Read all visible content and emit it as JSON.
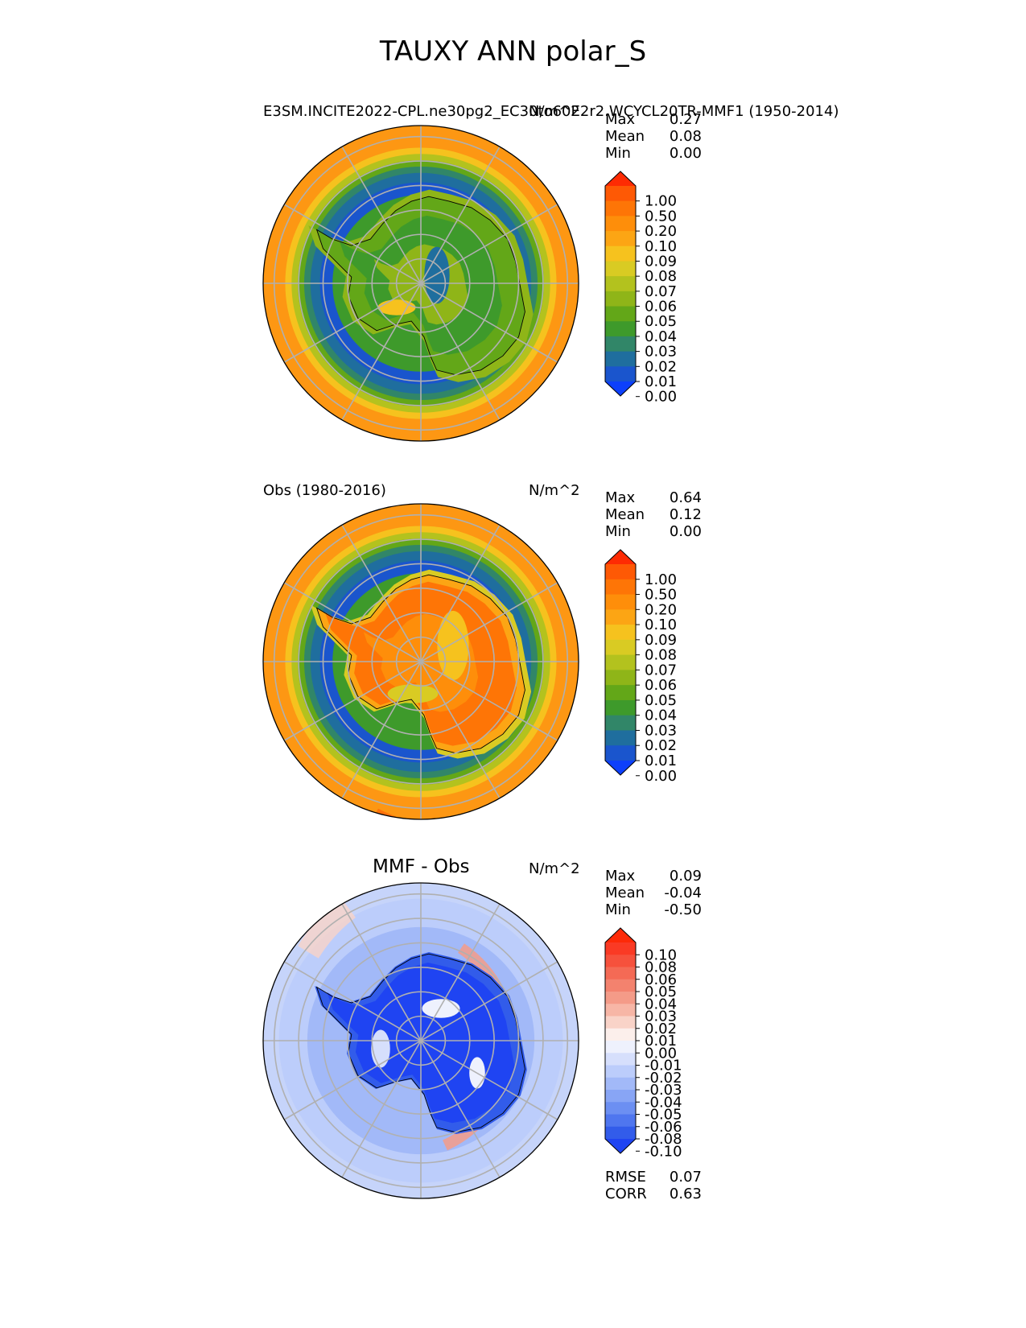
{
  "title": "TAUXY ANN polar_S",
  "chart_data": [
    {
      "type": "heatmap",
      "projection": "south-polar-stereographic",
      "panel_title": "E3SM.INCITE2022-CPL.ne30pg2_EC30to60E2r2.WCYCL20TR-MMF1 (1950-2014)",
      "units": "N/m^2",
      "stats": [
        [
          "Max",
          "0.27"
        ],
        [
          "Mean",
          "0.08"
        ],
        [
          "Min",
          "0.00"
        ]
      ],
      "colorbar": {
        "ticks": [
          "1.00",
          "0.50",
          "0.20",
          "0.10",
          "0.09",
          "0.08",
          "0.07",
          "0.06",
          "0.05",
          "0.04",
          "0.03",
          "0.02",
          "0.01",
          "0.00"
        ],
        "colors": [
          "#fe2b03",
          "#fe5905",
          "#fe7506",
          "#fe8e0a",
          "#fca514",
          "#f6c21e",
          "#d9cb23",
          "#b3c21e",
          "#8fb518",
          "#63a718",
          "#3e9a2b",
          "#318668",
          "#1f6e9e",
          "#1a55cd",
          "#0d40fb"
        ]
      },
      "bg_color": "#fd9713"
    },
    {
      "type": "heatmap",
      "projection": "south-polar-stereographic",
      "panel_title": "Obs (1980-2016)",
      "units": "N/m^2",
      "stats": [
        [
          "Max",
          "0.64"
        ],
        [
          "Mean",
          "0.12"
        ],
        [
          "Min",
          "0.00"
        ]
      ],
      "colorbar": {
        "ticks": [
          "1.00",
          "0.50",
          "0.20",
          "0.10",
          "0.09",
          "0.08",
          "0.07",
          "0.06",
          "0.05",
          "0.04",
          "0.03",
          "0.02",
          "0.01",
          "0.00"
        ],
        "colors": [
          "#fe2b03",
          "#fe5905",
          "#fe7506",
          "#fe8e0a",
          "#fca514",
          "#f6c21e",
          "#d9cb23",
          "#b3c21e",
          "#8fb518",
          "#63a718",
          "#3e9a2b",
          "#318668",
          "#1f6e9e",
          "#1a55cd",
          "#0d40fb"
        ]
      },
      "bg_color": "#fd9713"
    },
    {
      "type": "heatmap",
      "projection": "south-polar-stereographic",
      "panel_title": "MMF - Obs",
      "units": "N/m^2",
      "stats": [
        [
          "Max",
          "0.09"
        ],
        [
          "Mean",
          "-0.04"
        ],
        [
          "Min",
          "-0.50"
        ]
      ],
      "colorbar": {
        "ticks": [
          "0.10",
          "0.08",
          "0.06",
          "0.05",
          "0.04",
          "0.03",
          "0.02",
          "0.01",
          "0.00",
          "-0.01",
          "-0.02",
          "-0.03",
          "-0.04",
          "-0.05",
          "-0.06",
          "-0.08",
          "-0.10"
        ],
        "colors": [
          "#fd2a08",
          "#fa3a24",
          "#f6513c",
          "#f46a55",
          "#f3826e",
          "#f49b88",
          "#f7b6a6",
          "#f9d3c8",
          "#fcefeb",
          "#eef1fd",
          "#d6dffc",
          "#bccdfb",
          "#a2b9f8",
          "#88a5f5",
          "#6c8ff2",
          "#4f76ef",
          "#325cea",
          "#1f44f2"
        ]
      },
      "bg_color": "#c6d4fa",
      "extra_stats": [
        [
          "RMSE",
          "0.07"
        ],
        [
          "CORR",
          "0.63"
        ]
      ]
    }
  ]
}
